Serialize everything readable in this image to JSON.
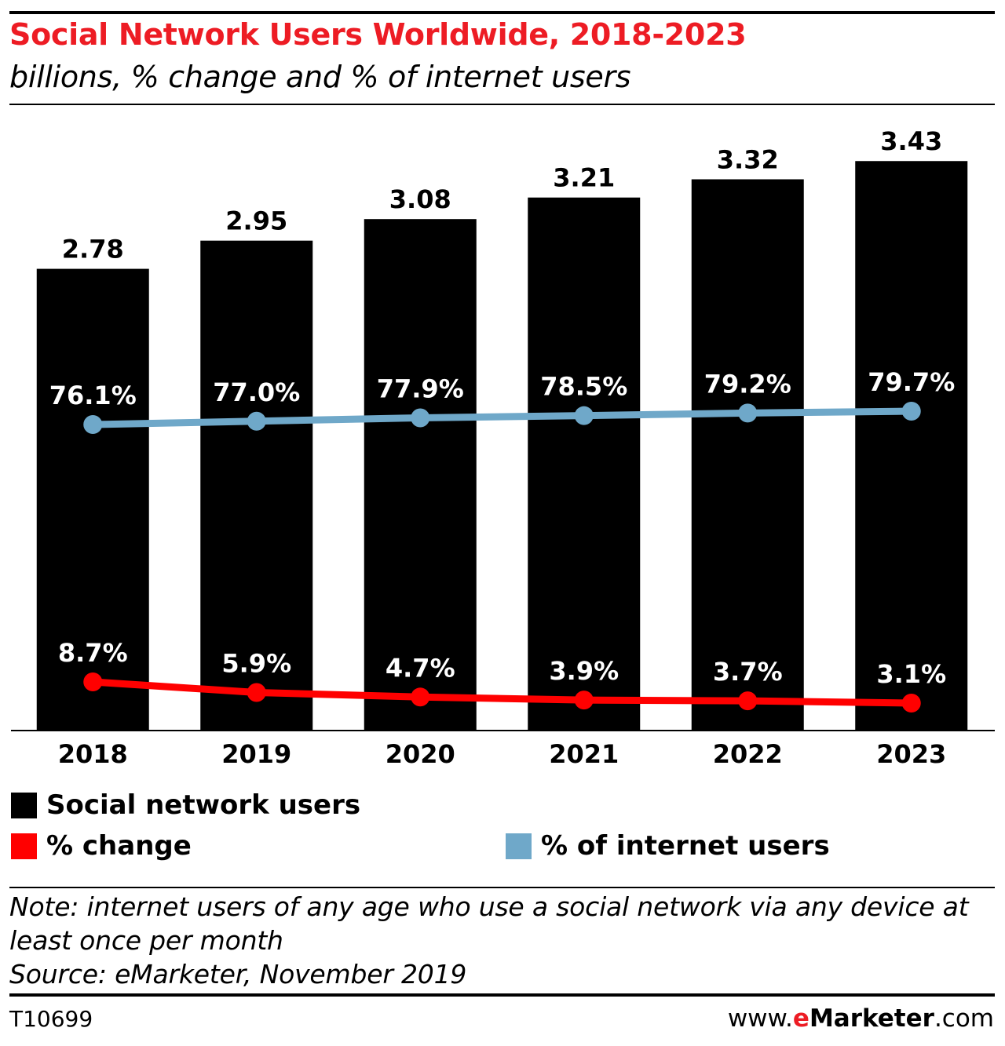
{
  "chart_data": {
    "type": "bar",
    "title": "Social Network Users Worldwide, 2018-2023",
    "subtitle": "billions, % change and % of internet users",
    "categories": [
      "2018",
      "2019",
      "2020",
      "2021",
      "2022",
      "2023"
    ],
    "series": [
      {
        "name": "Social network users",
        "type": "bar",
        "color": "#000000",
        "values": [
          2.78,
          2.95,
          3.08,
          3.21,
          3.32,
          3.43
        ],
        "labels": [
          "2.78",
          "2.95",
          "3.08",
          "3.21",
          "3.32",
          "3.43"
        ]
      },
      {
        "name": "% of internet users",
        "type": "line",
        "color": "#6fa8c9",
        "values": [
          76.1,
          77.0,
          77.9,
          78.5,
          79.2,
          79.7
        ],
        "labels": [
          "76.1%",
          "77.0%",
          "77.9%",
          "78.5%",
          "79.2%",
          "79.7%"
        ]
      },
      {
        "name": "% change",
        "type": "line",
        "color": "#ff0000",
        "values": [
          8.7,
          5.9,
          4.7,
          3.9,
          3.7,
          3.1
        ],
        "labels": [
          "8.7%",
          "5.9%",
          "4.7%",
          "3.9%",
          "3.7%",
          "3.1%"
        ]
      }
    ],
    "legend": [
      {
        "label": "Social network users",
        "color": "#000000"
      },
      {
        "label": "% change",
        "color": "#ff0000"
      },
      {
        "label": "% of internet users",
        "color": "#6fa8c9"
      }
    ],
    "legend_position": "bottom",
    "grid": false
  },
  "note": {
    "line1": "Note: internet users of any age who use a social network via any device at",
    "line2": "least once per month",
    "source": "Source: eMarketer, November 2019"
  },
  "footer": {
    "code": "T10699",
    "brand_prefix": "www.",
    "brand_e": "e",
    "brand_name": "Marketer",
    "brand_suffix": ".com"
  },
  "colors": {
    "accent": "#ed1c24"
  }
}
